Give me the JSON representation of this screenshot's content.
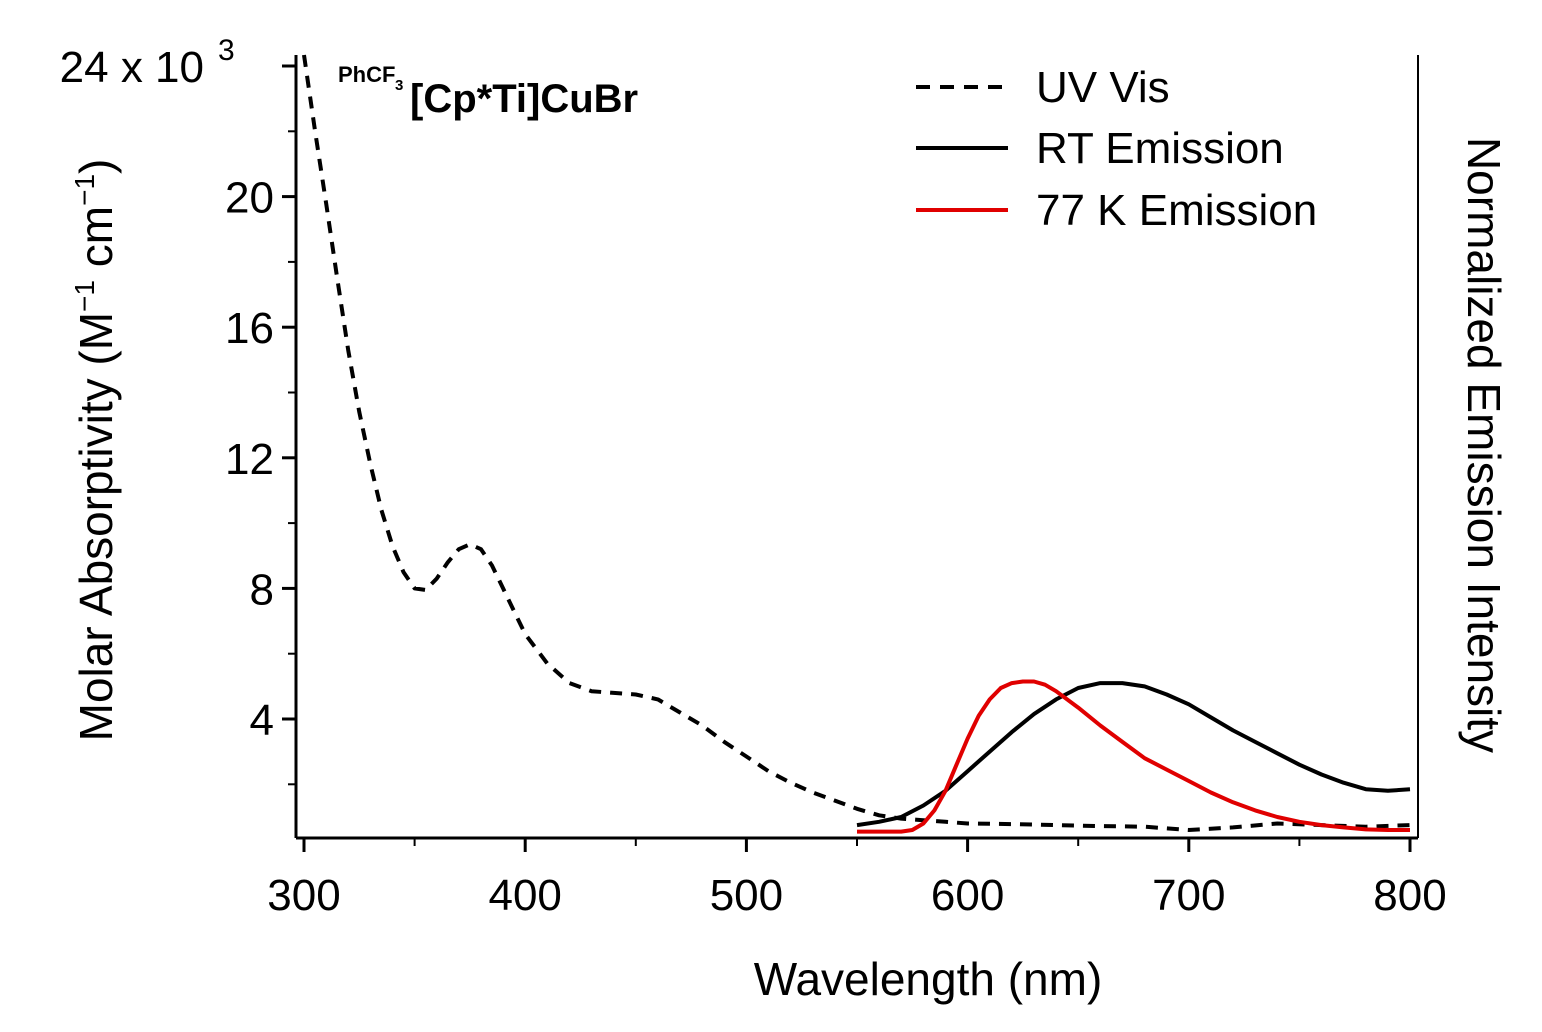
{
  "chart_data": {
    "type": "line",
    "title": {
      "prefix": "PhCF",
      "prefix_subscript": "3",
      "main": "[Cp*Ti]CuBr"
    },
    "xlabel": "Wavelength (nm)",
    "ylabel_left": {
      "text": "Molar Absorptivity (M",
      "sup1": "−1",
      "mid": " cm",
      "sup2": "−1",
      "end": ")"
    },
    "ylabel_right": "Normalized Emission Intensity",
    "xlim": [
      297,
      800
    ],
    "ylim": [
      0.5,
      24.5
    ],
    "x_ticks": [
      300,
      400,
      500,
      600,
      700,
      800
    ],
    "x_tick_labels": [
      "300",
      "400",
      "500",
      "600",
      "700",
      "800"
    ],
    "y_ticks": [
      4,
      8,
      12,
      16,
      20,
      24
    ],
    "y_tick_labels": [
      "4",
      "8",
      "12",
      "16",
      "20",
      "24 x 10"
    ],
    "y_top_exponent": "3",
    "series": [
      {
        "name": "UV Vis",
        "style": "dashed",
        "color": "#000000",
        "x": [
          300,
          305,
          310,
          315,
          320,
          325,
          330,
          335,
          340,
          345,
          350,
          355,
          360,
          365,
          370,
          375,
          380,
          385,
          390,
          395,
          400,
          410,
          420,
          430,
          440,
          450,
          460,
          470,
          480,
          490,
          500,
          510,
          520,
          530,
          540,
          550,
          560,
          570,
          580,
          590,
          600,
          620,
          640,
          660,
          680,
          700,
          720,
          740,
          760,
          780,
          800
        ],
        "y": [
          24.5,
          22.0,
          19.8,
          17.5,
          15.3,
          13.4,
          11.8,
          10.4,
          9.3,
          8.5,
          8.0,
          7.95,
          8.3,
          8.8,
          9.2,
          9.35,
          9.2,
          8.7,
          8.0,
          7.3,
          6.6,
          5.7,
          5.1,
          4.85,
          4.8,
          4.75,
          4.6,
          4.2,
          3.8,
          3.3,
          2.85,
          2.4,
          2.05,
          1.75,
          1.5,
          1.25,
          1.05,
          0.95,
          0.9,
          0.85,
          0.8,
          0.78,
          0.75,
          0.72,
          0.7,
          0.6,
          0.68,
          0.8,
          0.75,
          0.7,
          0.75
        ]
      },
      {
        "name": "RT Emission",
        "style": "solid",
        "color": "#000000",
        "x": [
          550,
          560,
          570,
          580,
          590,
          600,
          610,
          620,
          630,
          640,
          650,
          660,
          670,
          680,
          690,
          700,
          710,
          720,
          730,
          740,
          750,
          760,
          770,
          780,
          790,
          800
        ],
        "y": [
          0.75,
          0.85,
          1.0,
          1.35,
          1.8,
          2.4,
          3.0,
          3.6,
          4.15,
          4.6,
          4.95,
          5.1,
          5.1,
          5.0,
          4.75,
          4.45,
          4.05,
          3.65,
          3.3,
          2.95,
          2.6,
          2.3,
          2.05,
          1.85,
          1.8,
          1.85
        ]
      },
      {
        "name": "77 K Emission",
        "style": "solid",
        "color": "#e00000",
        "x": [
          550,
          560,
          570,
          575,
          580,
          585,
          590,
          595,
          600,
          605,
          610,
          615,
          620,
          625,
          630,
          635,
          640,
          650,
          660,
          670,
          680,
          690,
          700,
          710,
          720,
          730,
          740,
          750,
          760,
          770,
          780,
          790,
          800
        ],
        "y": [
          0.55,
          0.55,
          0.55,
          0.6,
          0.8,
          1.2,
          1.8,
          2.6,
          3.4,
          4.1,
          4.6,
          4.95,
          5.1,
          5.15,
          5.15,
          5.05,
          4.85,
          4.35,
          3.8,
          3.3,
          2.8,
          2.45,
          2.1,
          1.75,
          1.45,
          1.2,
          1.0,
          0.85,
          0.75,
          0.68,
          0.62,
          0.6,
          0.6
        ]
      }
    ],
    "legend": {
      "placement": "top-right",
      "entries": [
        "UV Vis",
        "RT Emission",
        "77 K Emission"
      ]
    }
  }
}
